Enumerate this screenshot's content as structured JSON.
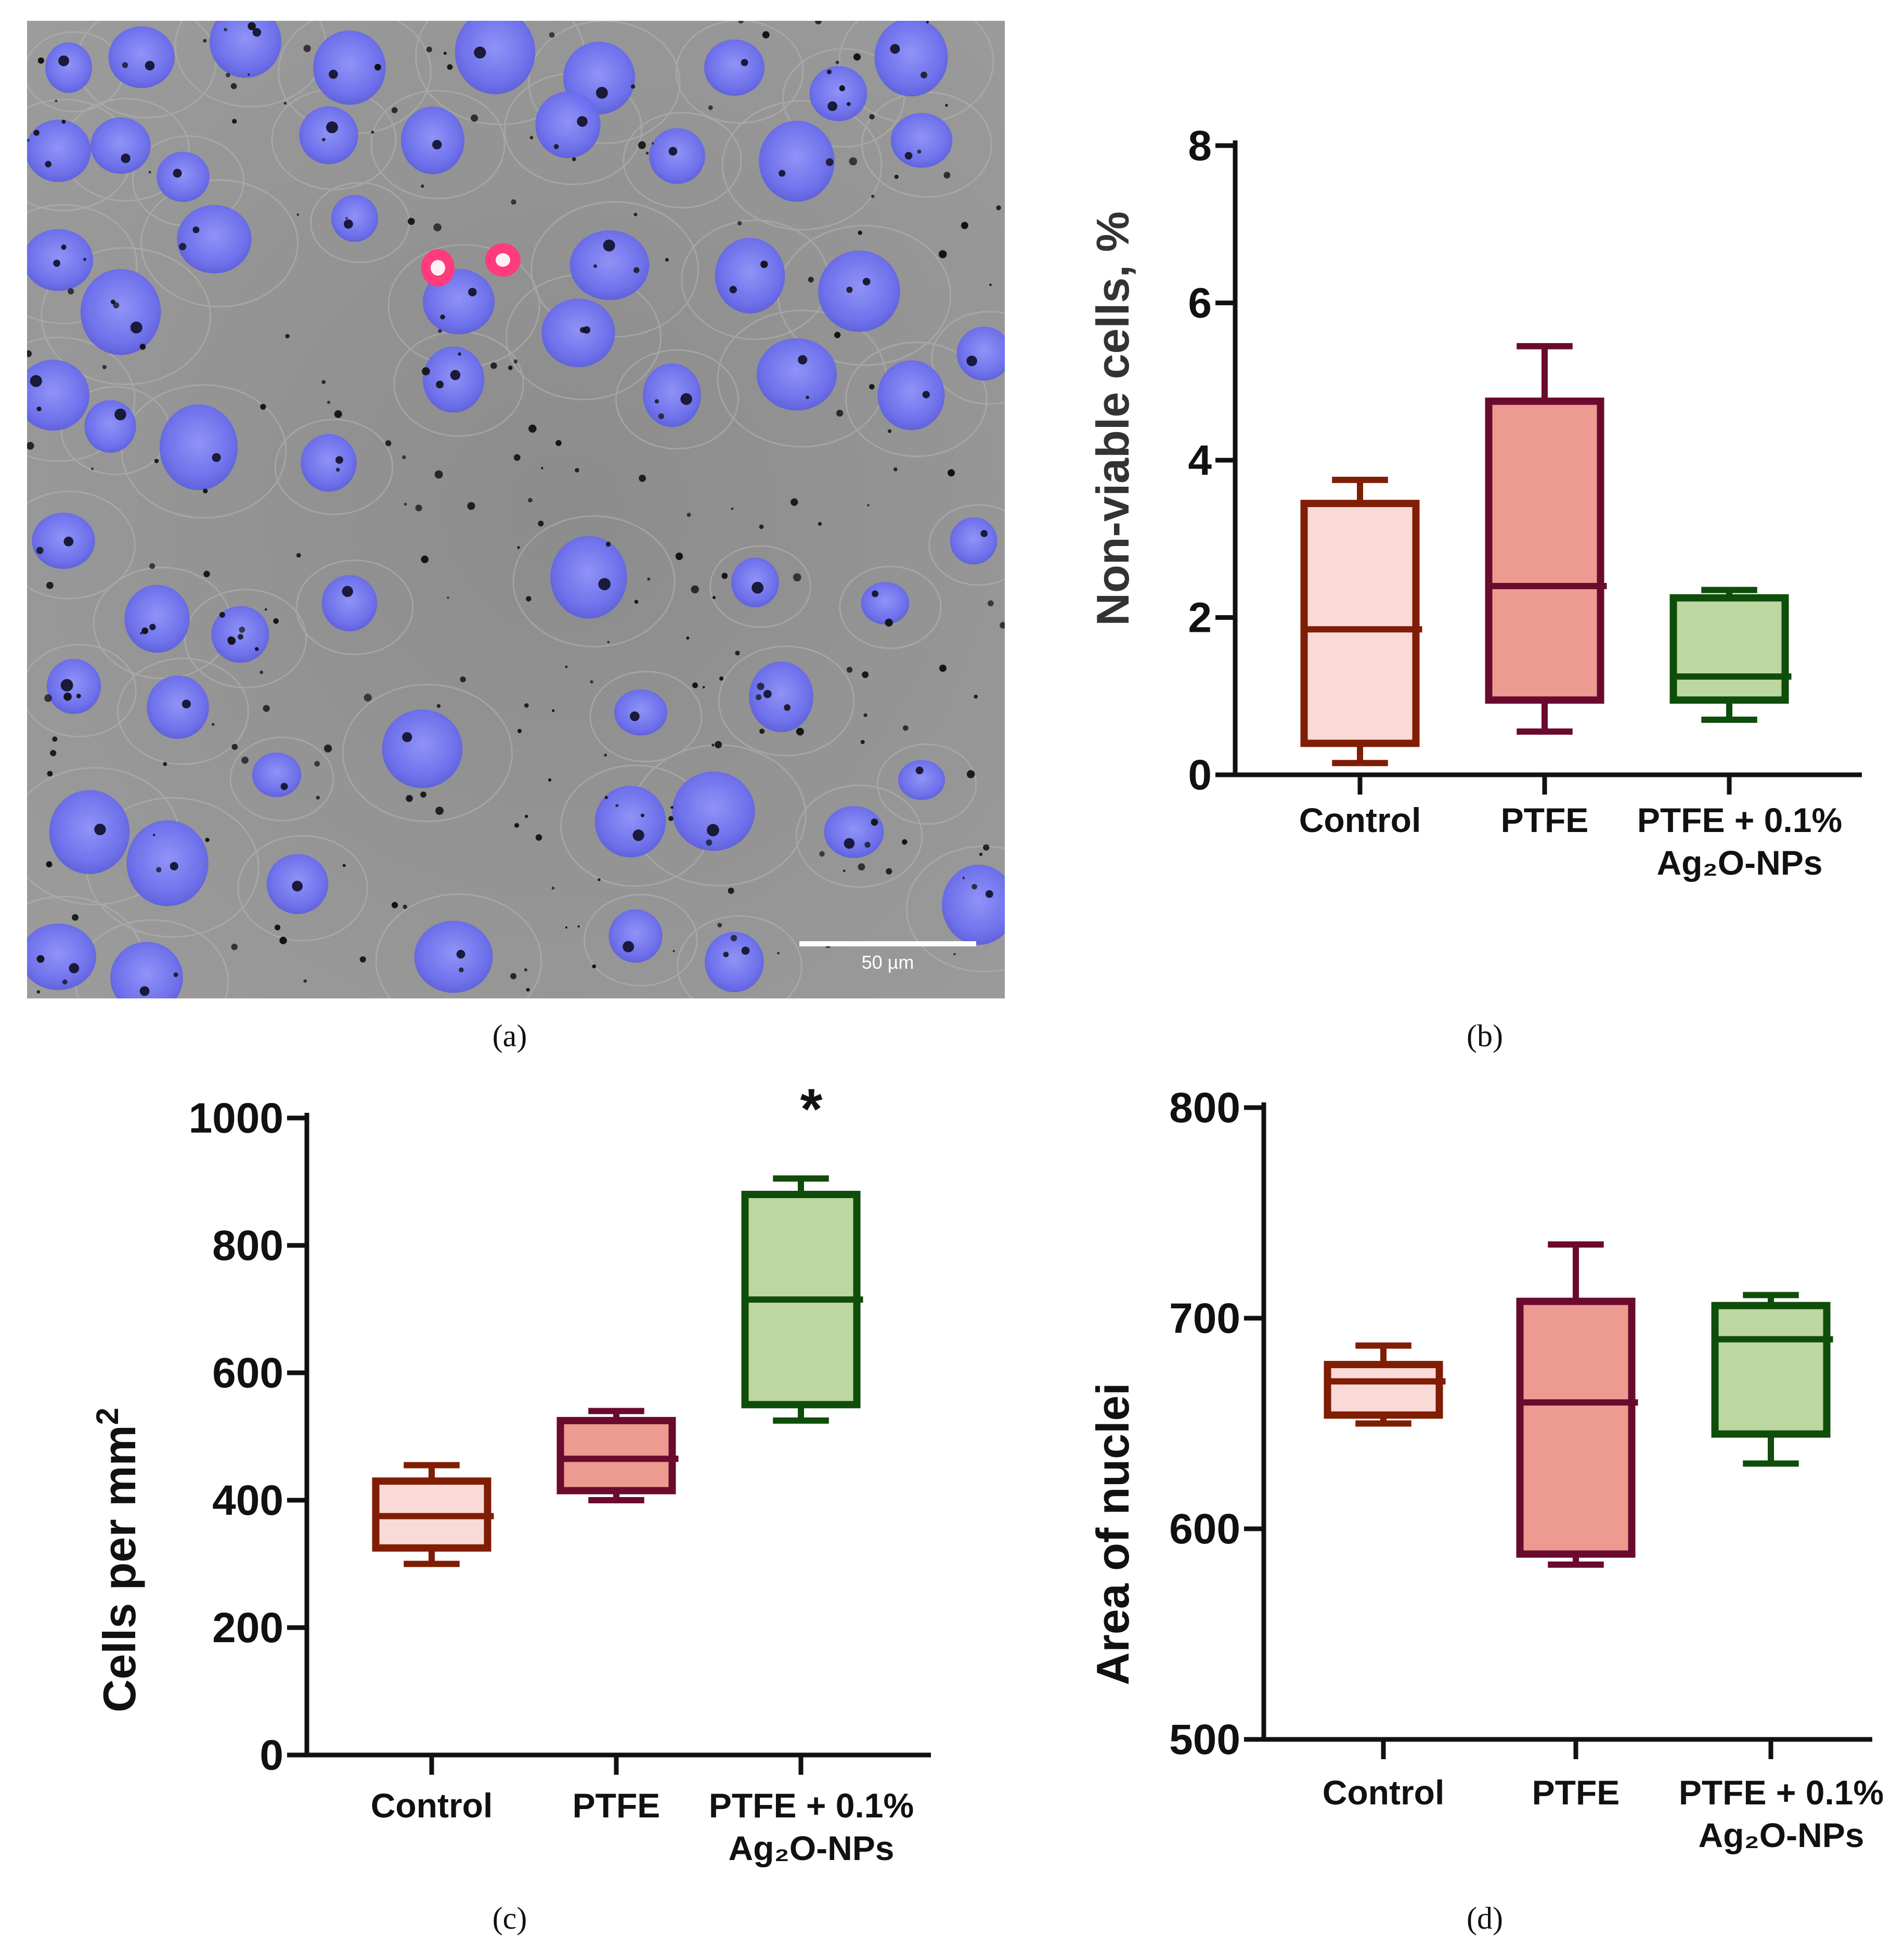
{
  "captions": [
    "(a)",
    "(b)",
    "(c)",
    "(d)"
  ],
  "scale_bar_label": "50 µm",
  "colors": {
    "control_edge": "#7f1d05",
    "control_fill": "#f9dad7",
    "ptfe_edge": "#6a0a2e",
    "ptfe_fill": "#ed9a90",
    "ag_edge": "#0f4d0a",
    "ag_fill": "#bcd7a0",
    "nucleus": "#6b6ef2",
    "background": "#8a8a8a"
  },
  "chart_data": [
    {
      "panel": "b",
      "type": "box",
      "ylabel": "Non-viable cells, %",
      "ylim": [
        0,
        8
      ],
      "yticks": [
        0,
        2,
        4,
        6,
        8
      ],
      "categories": [
        "Control",
        "PTFE",
        "PTFE + 0.1%|Ag₂O-NPs"
      ],
      "boxes": [
        {
          "min": 0.15,
          "q1": 0.4,
          "median": 1.85,
          "q3": 3.45,
          "max": 3.75
        },
        {
          "min": 0.55,
          "q1": 0.95,
          "median": 2.4,
          "q3": 4.75,
          "max": 5.45
        },
        {
          "min": 0.7,
          "q1": 0.95,
          "median": 1.25,
          "q3": 2.25,
          "max": 2.35
        }
      ],
      "annotations": []
    },
    {
      "panel": "c",
      "type": "box",
      "ylabel": "Cells per mm²",
      "ylim": [
        0,
        1000
      ],
      "yticks": [
        0,
        200,
        400,
        600,
        800,
        1000
      ],
      "categories": [
        "Control",
        "PTFE",
        "PTFE + 0.1%|Ag₂O-NPs"
      ],
      "boxes": [
        {
          "min": 300,
          "q1": 325,
          "median": 375,
          "q3": 430,
          "max": 455
        },
        {
          "min": 400,
          "q1": 415,
          "median": 465,
          "q3": 525,
          "max": 540
        },
        {
          "min": 525,
          "q1": 550,
          "median": 715,
          "q3": 880,
          "max": 905
        }
      ],
      "annotations": [
        {
          "text": "*",
          "category": 2,
          "y": 1020
        }
      ]
    },
    {
      "panel": "d",
      "type": "box",
      "ylabel": "Area of nuclei",
      "ylim": [
        500,
        800
      ],
      "yticks": [
        500,
        600,
        700,
        800
      ],
      "categories": [
        "Control",
        "PTFE",
        "PTFE + 0.1%|Ag₂O-NPs"
      ],
      "boxes": [
        {
          "min": 650,
          "q1": 654,
          "median": 670,
          "q3": 678,
          "max": 687
        },
        {
          "min": 583,
          "q1": 588,
          "median": 660,
          "q3": 708,
          "max": 735
        },
        {
          "min": 631,
          "q1": 645,
          "median": 690,
          "q3": 706,
          "max": 711
        }
      ],
      "annotations": []
    }
  ]
}
